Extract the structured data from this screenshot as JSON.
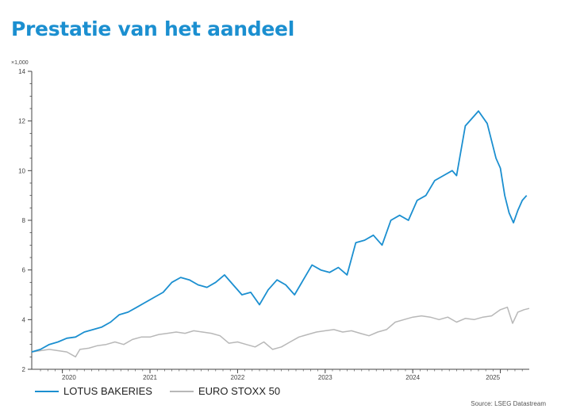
{
  "title": "Prestatie van het aandeel",
  "source": "Source: LSEG Datastream",
  "chart_data": {
    "type": "line",
    "y_multiplier_label": "×1,000",
    "ylim": [
      2,
      14
    ],
    "y_ticks": [
      2,
      4,
      6,
      8,
      10,
      12,
      14
    ],
    "x_range": [
      2019.65,
      2025.33
    ],
    "x_ticks": [
      {
        "label": "2020",
        "value": 2020.0
      },
      {
        "label": "2021",
        "value": 2021.0
      },
      {
        "label": "2022",
        "value": 2022.0
      },
      {
        "label": "2023",
        "value": 2023.0
      },
      {
        "label": "2024",
        "value": 2024.0
      },
      {
        "label": "2025",
        "value": 2025.0
      }
    ],
    "series": [
      {
        "name": "LOTUS BAKERIES",
        "color": "#1b8fd0",
        "points": [
          [
            2019.65,
            2.7
          ],
          [
            2019.75,
            2.8
          ],
          [
            2019.85,
            3.0
          ],
          [
            2019.95,
            3.1
          ],
          [
            2020.05,
            3.25
          ],
          [
            2020.15,
            3.3
          ],
          [
            2020.25,
            3.5
          ],
          [
            2020.35,
            3.6
          ],
          [
            2020.45,
            3.7
          ],
          [
            2020.55,
            3.9
          ],
          [
            2020.65,
            4.2
          ],
          [
            2020.75,
            4.3
          ],
          [
            2020.85,
            4.5
          ],
          [
            2020.95,
            4.7
          ],
          [
            2021.05,
            4.9
          ],
          [
            2021.15,
            5.1
          ],
          [
            2021.25,
            5.5
          ],
          [
            2021.35,
            5.7
          ],
          [
            2021.45,
            5.6
          ],
          [
            2021.55,
            5.4
          ],
          [
            2021.65,
            5.3
          ],
          [
            2021.75,
            5.5
          ],
          [
            2021.85,
            5.8
          ],
          [
            2021.95,
            5.4
          ],
          [
            2022.05,
            5.0
          ],
          [
            2022.15,
            5.1
          ],
          [
            2022.25,
            4.6
          ],
          [
            2022.35,
            5.2
          ],
          [
            2022.45,
            5.6
          ],
          [
            2022.55,
            5.4
          ],
          [
            2022.65,
            5.0
          ],
          [
            2022.75,
            5.6
          ],
          [
            2022.85,
            6.2
          ],
          [
            2022.95,
            6.0
          ],
          [
            2023.05,
            5.9
          ],
          [
            2023.15,
            6.1
          ],
          [
            2023.25,
            5.8
          ],
          [
            2023.35,
            7.1
          ],
          [
            2023.45,
            7.2
          ],
          [
            2023.55,
            7.4
          ],
          [
            2023.65,
            7.0
          ],
          [
            2023.75,
            8.0
          ],
          [
            2023.85,
            8.2
          ],
          [
            2023.95,
            8.0
          ],
          [
            2024.05,
            8.8
          ],
          [
            2024.15,
            9.0
          ],
          [
            2024.25,
            9.6
          ],
          [
            2024.35,
            9.8
          ],
          [
            2024.45,
            10.0
          ],
          [
            2024.5,
            9.8
          ],
          [
            2024.6,
            11.8
          ],
          [
            2024.7,
            12.2
          ],
          [
            2024.75,
            12.4
          ],
          [
            2024.85,
            11.9
          ],
          [
            2024.95,
            10.5
          ],
          [
            2025.0,
            10.1
          ],
          [
            2025.05,
            9.0
          ],
          [
            2025.1,
            8.3
          ],
          [
            2025.15,
            7.9
          ],
          [
            2025.2,
            8.4
          ],
          [
            2025.25,
            8.8
          ],
          [
            2025.3,
            9.0
          ]
        ]
      },
      {
        "name": "EURO STOXX 50",
        "color": "#b8b8b8",
        "points": [
          [
            2019.65,
            2.7
          ],
          [
            2019.75,
            2.75
          ],
          [
            2019.85,
            2.8
          ],
          [
            2019.95,
            2.75
          ],
          [
            2020.05,
            2.7
          ],
          [
            2020.15,
            2.5
          ],
          [
            2020.2,
            2.8
          ],
          [
            2020.3,
            2.85
          ],
          [
            2020.4,
            2.95
          ],
          [
            2020.5,
            3.0
          ],
          [
            2020.6,
            3.1
          ],
          [
            2020.7,
            3.0
          ],
          [
            2020.8,
            3.2
          ],
          [
            2020.9,
            3.3
          ],
          [
            2021.0,
            3.3
          ],
          [
            2021.1,
            3.4
          ],
          [
            2021.2,
            3.45
          ],
          [
            2021.3,
            3.5
          ],
          [
            2021.4,
            3.45
          ],
          [
            2021.5,
            3.55
          ],
          [
            2021.6,
            3.5
          ],
          [
            2021.7,
            3.45
          ],
          [
            2021.8,
            3.35
          ],
          [
            2021.9,
            3.05
          ],
          [
            2022.0,
            3.1
          ],
          [
            2022.1,
            3.0
          ],
          [
            2022.2,
            2.9
          ],
          [
            2022.3,
            3.1
          ],
          [
            2022.4,
            2.8
          ],
          [
            2022.5,
            2.9
          ],
          [
            2022.6,
            3.1
          ],
          [
            2022.7,
            3.3
          ],
          [
            2022.8,
            3.4
          ],
          [
            2022.9,
            3.5
          ],
          [
            2023.0,
            3.55
          ],
          [
            2023.1,
            3.6
          ],
          [
            2023.2,
            3.5
          ],
          [
            2023.3,
            3.55
          ],
          [
            2023.4,
            3.45
          ],
          [
            2023.5,
            3.35
          ],
          [
            2023.6,
            3.5
          ],
          [
            2023.7,
            3.6
          ],
          [
            2023.8,
            3.9
          ],
          [
            2023.9,
            4.0
          ],
          [
            2024.0,
            4.1
          ],
          [
            2024.1,
            4.15
          ],
          [
            2024.2,
            4.1
          ],
          [
            2024.3,
            4.0
          ],
          [
            2024.4,
            4.1
          ],
          [
            2024.5,
            3.9
          ],
          [
            2024.6,
            4.05
          ],
          [
            2024.7,
            4.0
          ],
          [
            2024.8,
            4.1
          ],
          [
            2024.9,
            4.15
          ],
          [
            2025.0,
            4.4
          ],
          [
            2025.08,
            4.5
          ],
          [
            2025.14,
            3.85
          ],
          [
            2025.2,
            4.3
          ],
          [
            2025.27,
            4.4
          ],
          [
            2025.33,
            4.45
          ]
        ]
      }
    ]
  }
}
